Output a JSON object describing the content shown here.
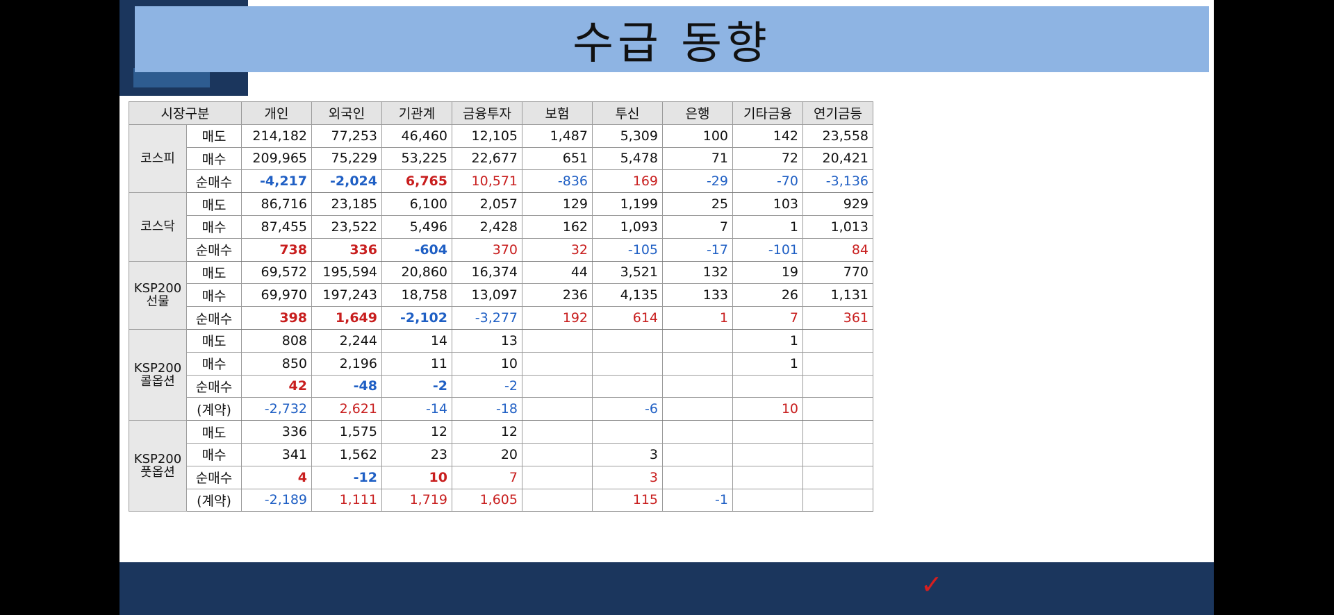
{
  "title": "수급 동향",
  "colors": {
    "background": "#000000",
    "slide": "#ffffff",
    "title_bar": "#8eb4e3",
    "navy": "#1b365d",
    "positive": "#c81e1e",
    "negative": "#1f5fc4"
  },
  "icons": {
    "check": "✓"
  },
  "table": {
    "header": [
      "시장구분",
      "개인",
      "외국인",
      "기관계",
      "금융투자",
      "보험",
      "투신",
      "은행",
      "기타금융",
      "연기금등"
    ],
    "sections": [
      {
        "market": "코스피",
        "rows": [
          {
            "label": "매도",
            "cells": [
              {
                "v": "214,182"
              },
              {
                "v": "77,253"
              },
              {
                "v": "46,460"
              },
              {
                "v": "12,105"
              },
              {
                "v": "1,487"
              },
              {
                "v": "5,309"
              },
              {
                "v": "100"
              },
              {
                "v": "142"
              },
              {
                "v": "23,558"
              }
            ]
          },
          {
            "label": "매수",
            "cells": [
              {
                "v": "209,965"
              },
              {
                "v": "75,229"
              },
              {
                "v": "53,225"
              },
              {
                "v": "22,677"
              },
              {
                "v": "651"
              },
              {
                "v": "5,478"
              },
              {
                "v": "71"
              },
              {
                "v": "72"
              },
              {
                "v": "20,421"
              }
            ]
          },
          {
            "label": "순매수",
            "cells": [
              {
                "v": "-4,217",
                "c": "blue",
                "b": true
              },
              {
                "v": "-2,024",
                "c": "blue",
                "b": true
              },
              {
                "v": "6,765",
                "c": "red",
                "b": true
              },
              {
                "v": "10,571",
                "c": "red"
              },
              {
                "v": "-836",
                "c": "blue"
              },
              {
                "v": "169",
                "c": "red"
              },
              {
                "v": "-29",
                "c": "blue"
              },
              {
                "v": "-70",
                "c": "blue"
              },
              {
                "v": "-3,136",
                "c": "blue"
              }
            ]
          }
        ]
      },
      {
        "market": "코스닥",
        "rows": [
          {
            "label": "매도",
            "cells": [
              {
                "v": "86,716"
              },
              {
                "v": "23,185"
              },
              {
                "v": "6,100"
              },
              {
                "v": "2,057"
              },
              {
                "v": "129"
              },
              {
                "v": "1,199"
              },
              {
                "v": "25"
              },
              {
                "v": "103"
              },
              {
                "v": "929"
              }
            ]
          },
          {
            "label": "매수",
            "cells": [
              {
                "v": "87,455"
              },
              {
                "v": "23,522"
              },
              {
                "v": "5,496"
              },
              {
                "v": "2,428"
              },
              {
                "v": "162"
              },
              {
                "v": "1,093"
              },
              {
                "v": "7"
              },
              {
                "v": "1"
              },
              {
                "v": "1,013"
              }
            ]
          },
          {
            "label": "순매수",
            "cells": [
              {
                "v": "738",
                "c": "red",
                "b": true
              },
              {
                "v": "336",
                "c": "red",
                "b": true
              },
              {
                "v": "-604",
                "c": "blue",
                "b": true
              },
              {
                "v": "370",
                "c": "red"
              },
              {
                "v": "32",
                "c": "red"
              },
              {
                "v": "-105",
                "c": "blue"
              },
              {
                "v": "-17",
                "c": "blue"
              },
              {
                "v": "-101",
                "c": "blue"
              },
              {
                "v": "84",
                "c": "red"
              }
            ]
          }
        ]
      },
      {
        "market": "KSP200\n선물",
        "rows": [
          {
            "label": "매도",
            "cells": [
              {
                "v": "69,572"
              },
              {
                "v": "195,594"
              },
              {
                "v": "20,860"
              },
              {
                "v": "16,374"
              },
              {
                "v": "44"
              },
              {
                "v": "3,521"
              },
              {
                "v": "132"
              },
              {
                "v": "19"
              },
              {
                "v": "770"
              }
            ]
          },
          {
            "label": "매수",
            "cells": [
              {
                "v": "69,970"
              },
              {
                "v": "197,243"
              },
              {
                "v": "18,758"
              },
              {
                "v": "13,097"
              },
              {
                "v": "236"
              },
              {
                "v": "4,135"
              },
              {
                "v": "133"
              },
              {
                "v": "26"
              },
              {
                "v": "1,131"
              }
            ]
          },
          {
            "label": "순매수",
            "cells": [
              {
                "v": "398",
                "c": "red",
                "b": true
              },
              {
                "v": "1,649",
                "c": "red",
                "b": true
              },
              {
                "v": "-2,102",
                "c": "blue",
                "b": true
              },
              {
                "v": "-3,277",
                "c": "blue"
              },
              {
                "v": "192",
                "c": "red"
              },
              {
                "v": "614",
                "c": "red"
              },
              {
                "v": "1",
                "c": "red"
              },
              {
                "v": "7",
                "c": "red"
              },
              {
                "v": "361",
                "c": "red"
              }
            ]
          }
        ]
      },
      {
        "market": "KSP200\n콜옵션",
        "rows": [
          {
            "label": "매도",
            "cells": [
              {
                "v": "808"
              },
              {
                "v": "2,244"
              },
              {
                "v": "14"
              },
              {
                "v": "13"
              },
              {
                "v": ""
              },
              {
                "v": ""
              },
              {
                "v": ""
              },
              {
                "v": "1"
              },
              {
                "v": ""
              }
            ]
          },
          {
            "label": "매수",
            "cells": [
              {
                "v": "850"
              },
              {
                "v": "2,196"
              },
              {
                "v": "11"
              },
              {
                "v": "10"
              },
              {
                "v": ""
              },
              {
                "v": ""
              },
              {
                "v": ""
              },
              {
                "v": "1"
              },
              {
                "v": ""
              }
            ]
          },
          {
            "label": "순매수",
            "cells": [
              {
                "v": "42",
                "c": "red",
                "b": true
              },
              {
                "v": "-48",
                "c": "blue",
                "b": true
              },
              {
                "v": "-2",
                "c": "blue",
                "b": true
              },
              {
                "v": "-2",
                "c": "blue"
              },
              {
                "v": ""
              },
              {
                "v": ""
              },
              {
                "v": ""
              },
              {
                "v": ""
              },
              {
                "v": ""
              }
            ]
          },
          {
            "label": "(계약)",
            "cells": [
              {
                "v": "-2,732",
                "c": "blue"
              },
              {
                "v": "2,621",
                "c": "red"
              },
              {
                "v": "-14",
                "c": "blue"
              },
              {
                "v": "-18",
                "c": "blue"
              },
              {
                "v": ""
              },
              {
                "v": "-6",
                "c": "blue"
              },
              {
                "v": ""
              },
              {
                "v": "10",
                "c": "red"
              },
              {
                "v": ""
              }
            ]
          }
        ]
      },
      {
        "market": "KSP200\n풋옵션",
        "rows": [
          {
            "label": "매도",
            "cells": [
              {
                "v": "336"
              },
              {
                "v": "1,575"
              },
              {
                "v": "12"
              },
              {
                "v": "12"
              },
              {
                "v": ""
              },
              {
                "v": ""
              },
              {
                "v": ""
              },
              {
                "v": ""
              },
              {
                "v": ""
              }
            ]
          },
          {
            "label": "매수",
            "cells": [
              {
                "v": "341"
              },
              {
                "v": "1,562"
              },
              {
                "v": "23"
              },
              {
                "v": "20"
              },
              {
                "v": ""
              },
              {
                "v": "3"
              },
              {
                "v": ""
              },
              {
                "v": ""
              },
              {
                "v": ""
              }
            ]
          },
          {
            "label": "순매수",
            "cells": [
              {
                "v": "4",
                "c": "red",
                "b": true
              },
              {
                "v": "-12",
                "c": "blue",
                "b": true
              },
              {
                "v": "10",
                "c": "red",
                "b": true
              },
              {
                "v": "7",
                "c": "red"
              },
              {
                "v": ""
              },
              {
                "v": "3",
                "c": "red"
              },
              {
                "v": ""
              },
              {
                "v": ""
              },
              {
                "v": ""
              }
            ]
          },
          {
            "label": "(계약)",
            "cells": [
              {
                "v": "-2,189",
                "c": "blue"
              },
              {
                "v": "1,111",
                "c": "red"
              },
              {
                "v": "1,719",
                "c": "red"
              },
              {
                "v": "1,605",
                "c": "red"
              },
              {
                "v": ""
              },
              {
                "v": "115",
                "c": "red"
              },
              {
                "v": "-1",
                "c": "blue"
              },
              {
                "v": ""
              },
              {
                "v": ""
              }
            ]
          }
        ]
      }
    ]
  }
}
